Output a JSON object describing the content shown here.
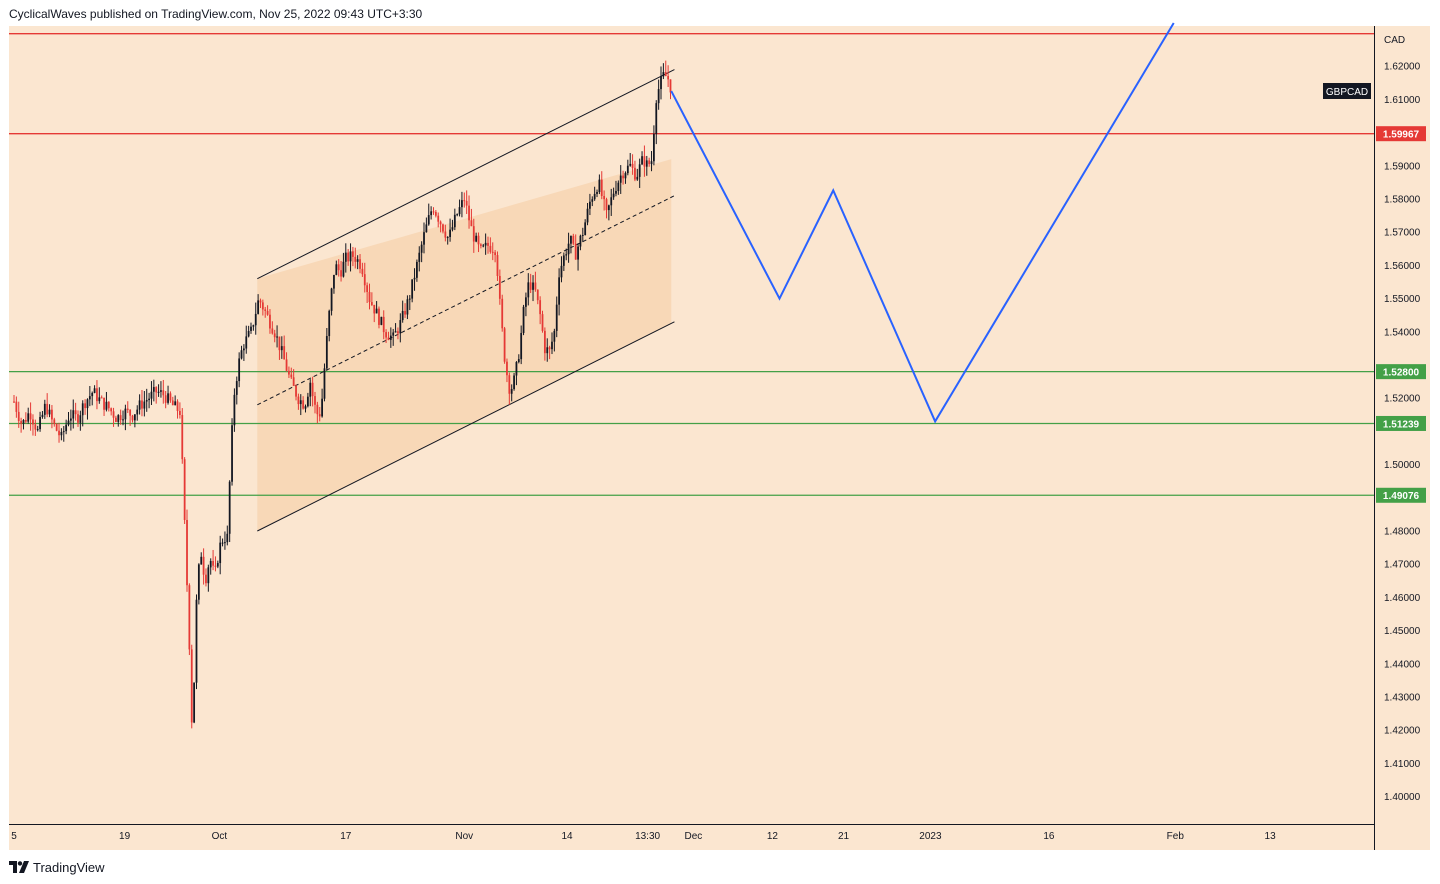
{
  "header": {
    "attribution": "CyclicalWaves published on TradingView.com, Nov 25, 2022 09:43 UTC+3:30"
  },
  "footer": {
    "brand": "TradingView"
  },
  "chart_data": {
    "type": "candlestick",
    "symbol": "GBPCAD",
    "currency": "CAD",
    "ylim": [
      1.393,
      1.632
    ],
    "y_ticks": [
      "1.62000",
      "1.61000",
      "1.59000",
      "1.58000",
      "1.57000",
      "1.56000",
      "1.55000",
      "1.54000",
      "1.52000",
      "1.50000",
      "1.48000",
      "1.47000",
      "1.46000",
      "1.45000",
      "1.44000",
      "1.43000",
      "1.42000",
      "1.41000",
      "1.40000"
    ],
    "x_ticks": [
      {
        "label": "5",
        "day": 0
      },
      {
        "label": "19",
        "day": 14
      },
      {
        "label": "Oct",
        "day": 26
      },
      {
        "label": "17",
        "day": 42
      },
      {
        "label": "Nov",
        "day": 57
      },
      {
        "label": "14",
        "day": 70
      },
      {
        "label": "13:30",
        "day": 80.2
      },
      {
        "label": "Dec",
        "day": 86
      },
      {
        "label": "12",
        "day": 96
      },
      {
        "label": "21",
        "day": 105
      },
      {
        "label": "2023",
        "day": 116
      },
      {
        "label": "16",
        "day": 131
      },
      {
        "label": "Feb",
        "day": 147
      },
      {
        "label": "13",
        "day": 159
      }
    ],
    "horizontal_levels": [
      {
        "value": 1.6298,
        "color": "#e53935",
        "label": null
      },
      {
        "value": 1.59967,
        "color": "#e53935",
        "label": "1.59967"
      },
      {
        "value": 1.528,
        "color": "#43a047",
        "label": "1.52800"
      },
      {
        "value": 1.51239,
        "color": "#43a047",
        "label": "1.51239"
      },
      {
        "value": 1.49076,
        "color": "#43a047",
        "label": "1.49076"
      }
    ],
    "channel": {
      "upper": [
        [
          30.8,
          1.556
        ],
        [
          83.6,
          1.619
        ]
      ],
      "middle": [
        [
          30.8,
          1.518
        ],
        [
          83.6,
          1.581
        ]
      ],
      "lower": [
        [
          30.8,
          1.48
        ],
        [
          83.6,
          1.543
        ]
      ],
      "fill_x_start": 30.8,
      "fill_x_end": 83.2,
      "fill_top": 1.592
    },
    "projection": [
      [
        83.2,
        1.6125
      ],
      [
        96.9,
        1.55
      ],
      [
        103.7,
        1.5826
      ],
      [
        116.6,
        1.513
      ],
      [
        146.8,
        1.633
      ]
    ],
    "price_anchors": [
      [
        0,
        1.519
      ],
      [
        1,
        1.512
      ],
      [
        2,
        1.516
      ],
      [
        3,
        1.51
      ],
      [
        4,
        1.518
      ],
      [
        5,
        1.512
      ],
      [
        6,
        1.508
      ],
      [
        7,
        1.515
      ],
      [
        8,
        1.514
      ],
      [
        9,
        1.519
      ],
      [
        10,
        1.522
      ],
      [
        11,
        1.519
      ],
      [
        12,
        1.517
      ],
      [
        13,
        1.514
      ],
      [
        14,
        1.516
      ],
      [
        15,
        1.515
      ],
      [
        16,
        1.518
      ],
      [
        17,
        1.52
      ],
      [
        18,
        1.522
      ],
      [
        19,
        1.521
      ],
      [
        20,
        1.518
      ],
      [
        21,
        1.516
      ],
      [
        21.3,
        1.5
      ],
      [
        21.8,
        1.47
      ],
      [
        22.3,
        1.44
      ],
      [
        22.6,
        1.415
      ],
      [
        23.0,
        1.455
      ],
      [
        23.6,
        1.475
      ],
      [
        24.2,
        1.465
      ],
      [
        24.8,
        1.472
      ],
      [
        25.4,
        1.466
      ],
      [
        26.0,
        1.475
      ],
      [
        26.5,
        1.478
      ],
      [
        27.0,
        1.478
      ],
      [
        27.4,
        1.5
      ],
      [
        27.8,
        1.52
      ],
      [
        28.4,
        1.53
      ],
      [
        29.0,
        1.536
      ],
      [
        30.0,
        1.54
      ],
      [
        31.0,
        1.55
      ],
      [
        32.0,
        1.545
      ],
      [
        33.0,
        1.54
      ],
      [
        34.0,
        1.533
      ],
      [
        35.0,
        1.525
      ],
      [
        36.0,
        1.52
      ],
      [
        36.8,
        1.518
      ],
      [
        37.5,
        1.525
      ],
      [
        38.0,
        1.518
      ],
      [
        38.6,
        1.514
      ],
      [
        39.0,
        1.52
      ],
      [
        39.5,
        1.535
      ],
      [
        40.0,
        1.548
      ],
      [
        40.6,
        1.56
      ],
      [
        41.3,
        1.558
      ],
      [
        42.0,
        1.562
      ],
      [
        43.0,
        1.563
      ],
      [
        44.0,
        1.56
      ],
      [
        45.0,
        1.55
      ],
      [
        46.0,
        1.545
      ],
      [
        47.0,
        1.54
      ],
      [
        48.0,
        1.538
      ],
      [
        49.0,
        1.543
      ],
      [
        50.0,
        1.55
      ],
      [
        51.0,
        1.56
      ],
      [
        52.0,
        1.57
      ],
      [
        53.0,
        1.578
      ],
      [
        54.0,
        1.573
      ],
      [
        55.0,
        1.568
      ],
      [
        56.0,
        1.575
      ],
      [
        57.0,
        1.58
      ],
      [
        58.0,
        1.57
      ],
      [
        59.0,
        1.564
      ],
      [
        60.0,
        1.566
      ],
      [
        61.0,
        1.565
      ],
      [
        61.6,
        1.545
      ],
      [
        62.2,
        1.53
      ],
      [
        62.8,
        1.522
      ],
      [
        63.4,
        1.526
      ],
      [
        64.0,
        1.535
      ],
      [
        64.6,
        1.548
      ],
      [
        65.2,
        1.555
      ],
      [
        66.0,
        1.552
      ],
      [
        66.6,
        1.545
      ],
      [
        67.2,
        1.535
      ],
      [
        67.8,
        1.534
      ],
      [
        68.4,
        1.54
      ],
      [
        69.0,
        1.558
      ],
      [
        69.8,
        1.564
      ],
      [
        70.4,
        1.568
      ],
      [
        71.0,
        1.563
      ],
      [
        72.0,
        1.57
      ],
      [
        73.0,
        1.58
      ],
      [
        74.0,
        1.585
      ],
      [
        75.0,
        1.575
      ],
      [
        76.0,
        1.583
      ],
      [
        77.0,
        1.588
      ],
      [
        78.0,
        1.59
      ],
      [
        78.8,
        1.587
      ],
      [
        79.6,
        1.592
      ],
      [
        80.2,
        1.59
      ],
      [
        80.8,
        1.592
      ],
      [
        81.2,
        1.61
      ],
      [
        81.7,
        1.614
      ],
      [
        82.2,
        1.617
      ],
      [
        82.7,
        1.617
      ],
      [
        83.2,
        1.613
      ]
    ]
  }
}
